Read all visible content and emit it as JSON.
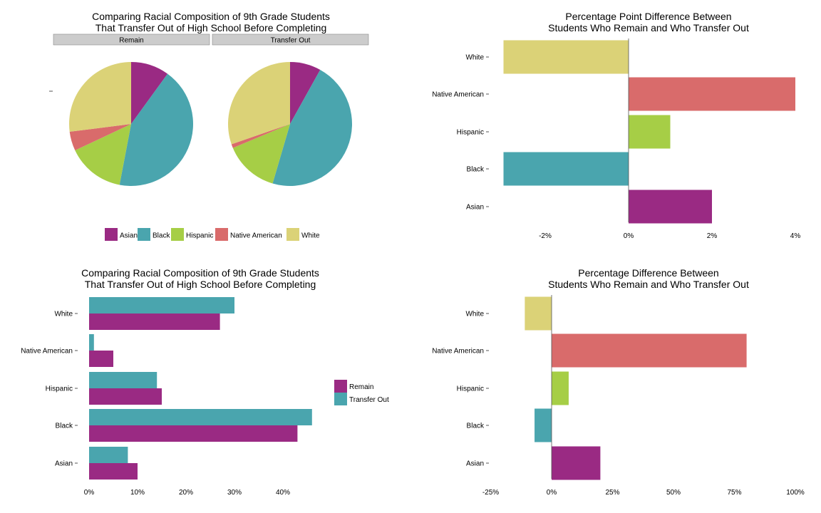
{
  "colors": {
    "Asian": "#9a2a83",
    "Black": "#4aa5ae",
    "Hispanic": "#a6ce46",
    "Native American": "#d96b6b",
    "White": "#dbd277",
    "Remain": "#9a2a83",
    "Transfer Out": "#4aa5ae",
    "strip_bg": "#cccccc",
    "axis_line": "#555555"
  },
  "chart_data": [
    {
      "type": "pie",
      "title": "Comparing Racial Composition of 9th Grade Students\nThat Transfer Out of High School Before Completing",
      "title_lines": [
        "Comparing Racial Composition of 9th Grade Students",
        "That Transfer Out of High School Before Completing"
      ],
      "facets": [
        "Remain",
        "Transfer Out"
      ],
      "categories": [
        "Asian",
        "Black",
        "Hispanic",
        "Native American",
        "White"
      ],
      "series": [
        {
          "name": "Remain",
          "values": [
            10,
            43,
            15,
            5,
            27
          ]
        },
        {
          "name": "Transfer Out",
          "values": [
            8,
            46,
            14,
            1,
            30
          ]
        }
      ],
      "legend": {
        "position": "bottom",
        "entries": [
          "Asian",
          "Black",
          "Hispanic",
          "Native American",
          "White"
        ]
      }
    },
    {
      "type": "bar",
      "orientation": "horizontal",
      "title": "Percentage Point Difference Between\nStudents Who Remain and Who Transfer Out",
      "title_lines": [
        "Percentage Point Difference Between",
        "Students Who Remain and Who Transfer Out"
      ],
      "categories": [
        "Asian",
        "Black",
        "Hispanic",
        "Native American",
        "White"
      ],
      "values": [
        2,
        -3,
        1,
        4,
        -3
      ],
      "xlim": [
        -3,
        4
      ],
      "xticks": [
        "-2%",
        "0%",
        "2%",
        "4%"
      ],
      "xtick_values": [
        -2,
        0,
        2,
        4
      ]
    },
    {
      "type": "bar",
      "orientation": "horizontal",
      "grouped": true,
      "title": "Comparing Racial Composition of 9th Grade Students\nThat Transfer Out of High School Before Completing",
      "title_lines": [
        "Comparing Racial Composition of 9th Grade Students",
        "That Transfer Out of High School Before Completing"
      ],
      "categories": [
        "Asian",
        "Black",
        "Hispanic",
        "Native American",
        "White"
      ],
      "series": [
        {
          "name": "Remain",
          "values": [
            10,
            43,
            15,
            5,
            27
          ]
        },
        {
          "name": "Transfer Out",
          "values": [
            8,
            46,
            14,
            1,
            30
          ]
        }
      ],
      "xlim": [
        0,
        46
      ],
      "xticks": [
        "0%",
        "10%",
        "20%",
        "30%",
        "40%"
      ],
      "xtick_values": [
        0,
        10,
        20,
        30,
        40
      ],
      "legend": {
        "position": "right",
        "entries": [
          "Remain",
          "Transfer Out"
        ]
      }
    },
    {
      "type": "bar",
      "orientation": "horizontal",
      "title": "Percentage Difference Between\nStudents Who Remain and Who Transfer Out",
      "title_lines": [
        "Percentage Difference Between",
        "Students Who Remain and Who Transfer Out"
      ],
      "categories": [
        "Asian",
        "Black",
        "Hispanic",
        "Native American",
        "White"
      ],
      "values": [
        20,
        -7,
        7,
        80,
        -11
      ],
      "xlim": [
        -25,
        100
      ],
      "xticks": [
        "-25%",
        "0%",
        "25%",
        "50%",
        "75%",
        "100%"
      ],
      "xtick_values": [
        -25,
        0,
        25,
        50,
        75,
        100
      ]
    }
  ]
}
